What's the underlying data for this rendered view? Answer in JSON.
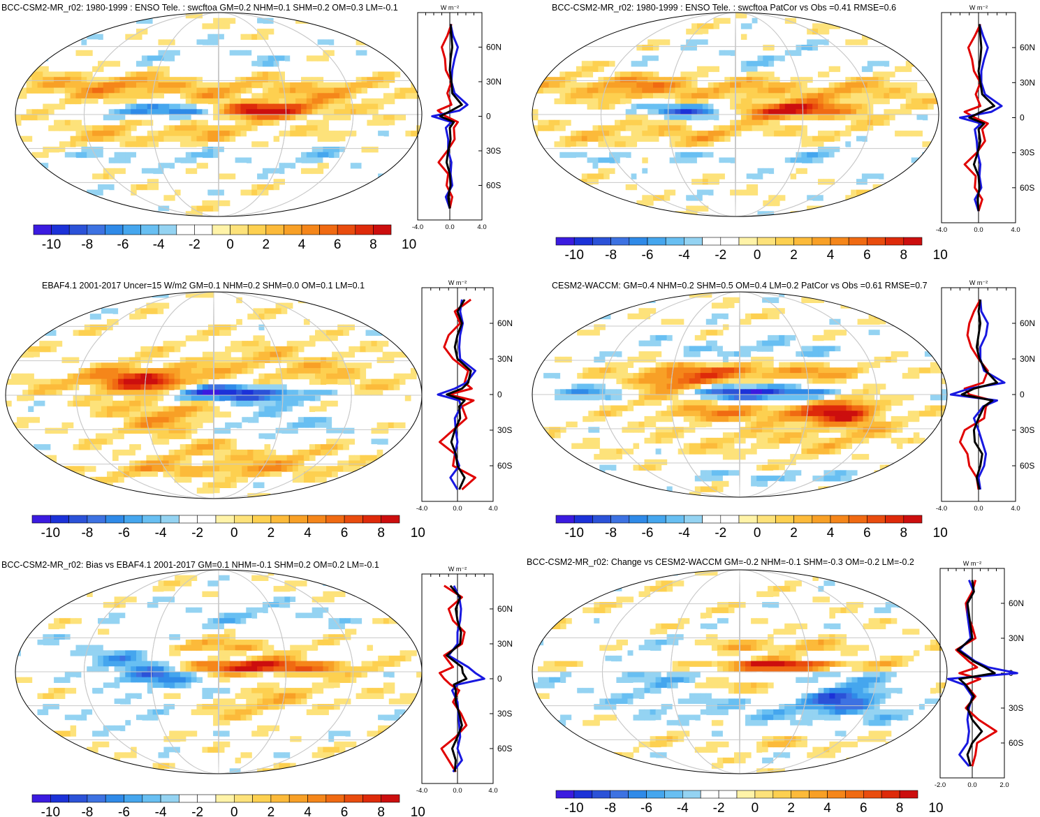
{
  "profile_unit": "W m⁻²",
  "latitude_ticks": [
    "60N",
    "30N",
    "0",
    "30S",
    "60S"
  ],
  "colorbar": {
    "tick_labels": [
      "-10",
      "-8",
      "-6",
      "-4",
      "-2",
      "0",
      "2",
      "4",
      "6",
      "8",
      "10"
    ],
    "colors": [
      "#3b1be0",
      "#1c32d8",
      "#2b52d8",
      "#3d72e2",
      "#2f8ae8",
      "#45a6ee",
      "#68bff2",
      "#94d3f2",
      "#ffffff",
      "#ffffff",
      "#fff3a8",
      "#fde27a",
      "#fdd050",
      "#fcba3a",
      "#f8a026",
      "#f5861a",
      "#f06a12",
      "#e94c0e",
      "#de2a0a",
      "#cc0e0e"
    ]
  },
  "chart_data": [
    {
      "type": "heatmap",
      "title": "BCC-CSM2-MR_r02: 1980-1999 : ENSO Tele. : swcftoa GM=0.2 NHM=0.1 SHM=0.2 OM=0.3 LM=-0.1",
      "legend": "colorbar-bottom",
      "clim": [
        -10,
        10
      ],
      "profile": {
        "xlim": [
          -4.0,
          4.0
        ],
        "x_tick_labels": [
          "-4.0",
          "0.0",
          "4.0"
        ],
        "lat": [
          80,
          70,
          60,
          50,
          40,
          30,
          20,
          10,
          5,
          0,
          -5,
          -10,
          -20,
          -30,
          -40,
          -50,
          -60,
          -70,
          -80
        ],
        "series": [
          {
            "color": "#e00000",
            "values": [
              0.2,
              -0.3,
              -1.0,
              -0.6,
              -0.5,
              0.2,
              -0.3,
              0.2,
              -1.5,
              -0.5,
              1.0,
              0.5,
              0.6,
              -0.3,
              -1.4,
              -0.2,
              -0.4,
              0.3,
              0.0
            ]
          },
          {
            "color": "#1818e0",
            "values": [
              0.1,
              0.4,
              1.0,
              0.6,
              0.3,
              0.2,
              0.6,
              2.2,
              1.2,
              -2.2,
              0.2,
              -0.5,
              -0.2,
              -0.2,
              0.2,
              0.1,
              0.3,
              -0.5,
              0.0
            ]
          },
          {
            "color": "#000000",
            "values": [
              0.1,
              0.2,
              0.3,
              0.1,
              0.0,
              0.2,
              0.3,
              1.5,
              0.2,
              -1.2,
              0.5,
              0.0,
              0.1,
              -0.2,
              -0.4,
              0.0,
              0.1,
              -0.2,
              0.0
            ]
          }
        ]
      }
    },
    {
      "type": "heatmap",
      "title": "BCC-CSM2-MR_r02: 1980-1999 : ENSO Tele. : swcftoa PatCor vs Obs =0.41 RMSE=0.6",
      "legend": "colorbar-bottom",
      "clim": [
        -10,
        10
      ],
      "profile": {
        "xlim": [
          -4.0,
          4.0
        ],
        "x_tick_labels": [
          "-4.0",
          "0.0",
          "4.0"
        ],
        "lat": [
          80,
          70,
          60,
          50,
          40,
          30,
          20,
          10,
          5,
          0,
          -5,
          -10,
          -20,
          -30,
          -40,
          -50,
          -60,
          -70,
          -80
        ],
        "series": [
          {
            "color": "#e00000",
            "values": [
              0.2,
              -0.4,
              -1.1,
              -0.7,
              -0.5,
              0.2,
              -0.3,
              0.2,
              -1.5,
              -0.4,
              1.0,
              0.4,
              0.7,
              -0.2,
              -1.5,
              -0.3,
              -0.4,
              0.4,
              0.0
            ]
          },
          {
            "color": "#1818e0",
            "values": [
              0.1,
              0.5,
              1.0,
              0.6,
              0.3,
              0.3,
              0.7,
              2.5,
              1.4,
              -2.0,
              0.3,
              -0.4,
              -0.2,
              -0.1,
              0.2,
              0.1,
              0.3,
              -0.4,
              0.0
            ]
          },
          {
            "color": "#000000",
            "values": [
              0.1,
              0.2,
              0.3,
              0.2,
              0.0,
              0.2,
              0.4,
              1.7,
              0.3,
              -1.0,
              0.6,
              0.0,
              0.2,
              -0.1,
              -0.5,
              0.0,
              0.1,
              -0.1,
              0.0
            ]
          }
        ]
      }
    },
    {
      "type": "heatmap",
      "title": "EBAF4.1 2001-2017 Uncer=15 W/m2 GM=0.1 NHM=0.2 SHM=0.0 OM=0.1 LM=0.1",
      "legend": "colorbar-bottom",
      "clim": [
        -10,
        10
      ],
      "profile": {
        "xlim": [
          -4.0,
          4.0
        ],
        "x_tick_labels": [
          "-4.0",
          "0.0",
          "4.0"
        ],
        "lat": [
          80,
          70,
          60,
          50,
          40,
          30,
          20,
          10,
          5,
          0,
          -5,
          -10,
          -20,
          -30,
          -40,
          -50,
          -60,
          -70,
          -80
        ],
        "series": [
          {
            "color": "#e00000",
            "values": [
              1.5,
              -0.3,
              0.3,
              -1.0,
              -1.5,
              -0.5,
              1.2,
              0.8,
              1.6,
              -1.0,
              1.8,
              0.5,
              1.0,
              -0.5,
              -2.0,
              -0.3,
              -0.5,
              2.0,
              0.5
            ]
          },
          {
            "color": "#1818e0",
            "values": [
              0.5,
              0.3,
              0.6,
              0.3,
              0.2,
              0.3,
              2.0,
              1.0,
              -0.3,
              -2.2,
              0.2,
              0.4,
              -0.3,
              -0.2,
              0.0,
              -0.3,
              0.2,
              -0.8,
              0.0
            ]
          },
          {
            "color": "#000000",
            "values": [
              0.8,
              0.0,
              0.5,
              0.0,
              -0.3,
              0.0,
              1.5,
              1.2,
              0.5,
              -1.2,
              0.8,
              0.2,
              0.3,
              -0.3,
              -0.7,
              -0.2,
              0.0,
              0.8,
              0.2
            ]
          }
        ]
      }
    },
    {
      "type": "heatmap",
      "title": "CESM2-WACCM: GM=0.4 NHM=0.2 SHM=0.5 OM=0.4 LM=0.2 PatCor vs Obs =0.61 RMSE=0.7",
      "legend": "colorbar-bottom",
      "clim": [
        -10,
        10
      ],
      "profile": {
        "xlim": [
          -4.0,
          4.0
        ],
        "x_tick_labels": [
          "-4.0",
          "0.0",
          "4.0"
        ],
        "lat": [
          80,
          70,
          60,
          50,
          40,
          30,
          20,
          10,
          5,
          0,
          -5,
          -10,
          -20,
          -30,
          -40,
          -50,
          -60,
          -70,
          -80
        ],
        "series": [
          {
            "color": "#e00000",
            "values": [
              0.2,
              -0.5,
              -1.0,
              -1.2,
              -0.8,
              0.0,
              1.0,
              0.5,
              -1.5,
              -1.0,
              1.5,
              0.8,
              0.6,
              -1.5,
              -2.0,
              -1.2,
              -1.0,
              -0.2,
              0.0
            ]
          },
          {
            "color": "#1818e0",
            "values": [
              0.2,
              0.3,
              1.0,
              0.8,
              0.2,
              0.2,
              0.6,
              2.8,
              -1.0,
              -3.0,
              2.0,
              0.5,
              -0.5,
              0.0,
              0.4,
              0.8,
              0.6,
              0.0,
              0.2
            ]
          },
          {
            "color": "#000000",
            "values": [
              0.2,
              0.0,
              0.2,
              0.0,
              -0.2,
              0.1,
              0.8,
              2.0,
              -0.5,
              -1.8,
              1.5,
              0.6,
              0.0,
              -0.5,
              -0.4,
              0.4,
              0.2,
              -0.2,
              0.1
            ]
          }
        ]
      }
    },
    {
      "type": "heatmap",
      "title": "BCC-CSM2-MR_r02: Bias vs EBAF4.1 2001-2017 GM=0.1 NHM=-0.1 SHM=0.2 OM=0.2 LM=-0.1",
      "legend": "colorbar-bottom",
      "clim": [
        -10,
        10
      ],
      "profile": {
        "xlim": [
          -4.0,
          4.0
        ],
        "x_tick_labels": [
          "-4.0",
          "0.0",
          "4.0"
        ],
        "lat": [
          80,
          70,
          60,
          50,
          40,
          30,
          20,
          10,
          5,
          0,
          -5,
          -10,
          -20,
          -30,
          -40,
          -50,
          -60,
          -70,
          -80
        ],
        "series": [
          {
            "color": "#e00000",
            "values": [
              -1.5,
              0.5,
              -1.0,
              -0.5,
              0.8,
              0.5,
              -1.5,
              -0.5,
              -2.0,
              -1.5,
              -0.8,
              0.2,
              -0.5,
              0.4,
              1.0,
              -0.2,
              -1.8,
              -1.0,
              -0.2
            ]
          },
          {
            "color": "#1818e0",
            "values": [
              -0.4,
              0.2,
              0.4,
              0.3,
              0.0,
              0.0,
              -1.0,
              1.2,
              2.0,
              3.0,
              0.0,
              -0.6,
              0.0,
              0.1,
              0.2,
              0.3,
              0.0,
              0.5,
              -0.5
            ]
          },
          {
            "color": "#000000",
            "values": [
              -0.8,
              0.3,
              -0.2,
              0.0,
              0.4,
              0.3,
              -1.2,
              0.5,
              0.6,
              1.0,
              -0.4,
              -0.2,
              -0.2,
              0.2,
              0.5,
              0.0,
              -0.6,
              -0.2,
              -0.3
            ]
          }
        ]
      }
    },
    {
      "type": "heatmap",
      "title": "BCC-CSM2-MR_r02: Change vs CESM2-WACCM GM=-0.2 NHM=-0.1 SHM=-0.3 OM=-0.2 LM=-0.2",
      "legend": "colorbar-bottom",
      "clim": [
        -10,
        10
      ],
      "profile": {
        "xlim": [
          -2.0,
          2.0
        ],
        "x_tick_labels": [
          "-2.0",
          "0.0",
          "2.0"
        ],
        "lat": [
          80,
          70,
          60,
          50,
          40,
          30,
          20,
          10,
          5,
          0,
          -5,
          -10,
          -20,
          -30,
          -40,
          -50,
          -60,
          -70,
          -80
        ],
        "series": [
          {
            "color": "#e00000",
            "values": [
              0.2,
              0.0,
              -0.4,
              -0.3,
              0.0,
              0.2,
              -1.0,
              -0.2,
              0.3,
              -0.8,
              0.5,
              -0.4,
              0.2,
              -0.4,
              0.4,
              1.5,
              0.3,
              0.2,
              0.0
            ]
          },
          {
            "color": "#1818e0",
            "values": [
              -0.2,
              0.1,
              -0.3,
              -0.3,
              -0.2,
              -0.1,
              -0.8,
              0.2,
              1.0,
              2.8,
              -1.5,
              -0.5,
              0.0,
              -0.2,
              -0.3,
              -0.2,
              -0.3,
              -0.8,
              -0.2
            ]
          },
          {
            "color": "#000000",
            "values": [
              0.0,
              0.1,
              -0.3,
              -0.2,
              -0.1,
              0.0,
              -0.9,
              0.1,
              0.8,
              1.4,
              -0.8,
              -0.4,
              0.1,
              -0.3,
              0.0,
              0.6,
              0.0,
              -0.3,
              -0.1
            ]
          }
        ]
      }
    }
  ]
}
